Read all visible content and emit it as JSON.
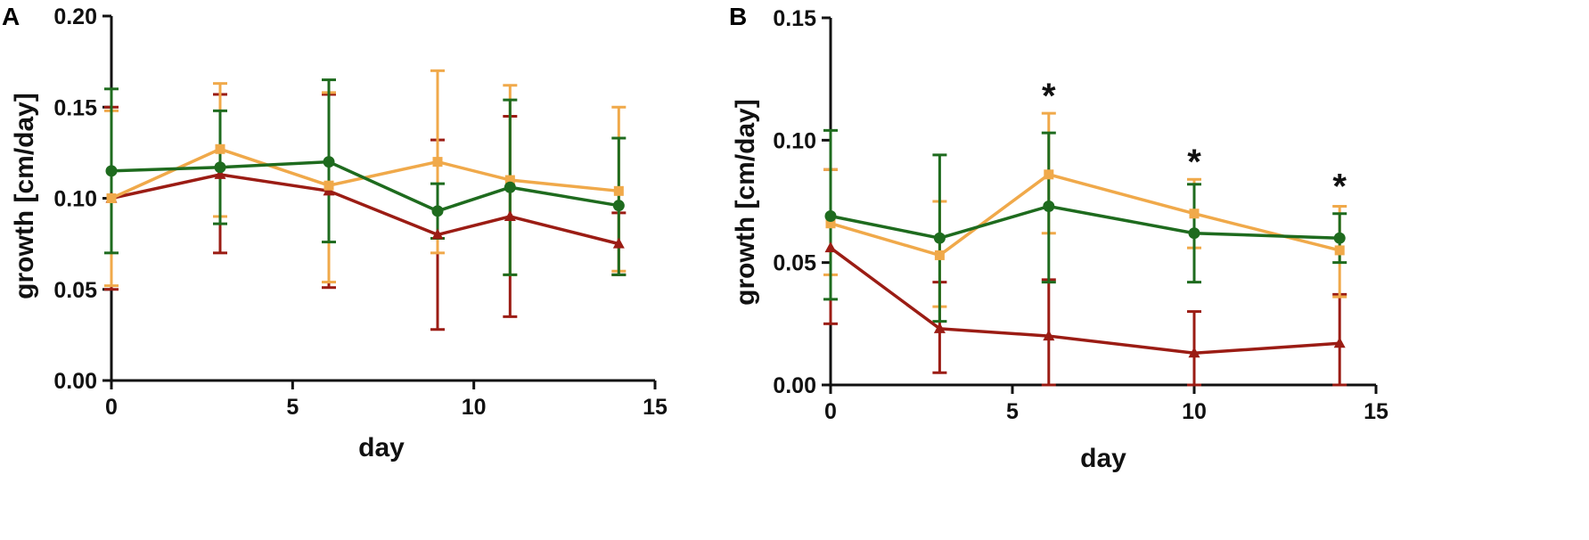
{
  "chart_data": [
    {
      "type": "line",
      "panel_label": "A",
      "xlabel": "day",
      "ylabel": "growth [cm/day]",
      "xlim": [
        0,
        15
      ],
      "ylim": [
        0,
        0.2
      ],
      "xticks": [
        0,
        5,
        10,
        15
      ],
      "xtick_labels": [
        "0",
        "5",
        "10",
        "15"
      ],
      "yticks": [
        0,
        0.05,
        0.1,
        0.15,
        0.2
      ],
      "ytick_labels": [
        "0.00",
        "0.05",
        "0.10",
        "0.15",
        "0.20"
      ],
      "grid": false,
      "annotations": [],
      "series": [
        {
          "name": "red",
          "color": "#9b1c14",
          "marker": "triangle",
          "x": [
            0,
            3,
            6,
            9,
            11,
            14
          ],
          "y": [
            0.1,
            0.113,
            0.104,
            0.08,
            0.09,
            0.075
          ],
          "err_low": [
            0.05,
            0.07,
            0.051,
            0.028,
            0.035,
            0.058
          ],
          "err_high": [
            0.15,
            0.157,
            0.157,
            0.132,
            0.145,
            0.092
          ]
        },
        {
          "name": "orange",
          "color": "#f0a94a",
          "marker": "square",
          "x": [
            0,
            3,
            6,
            9,
            11,
            14
          ],
          "y": [
            0.1,
            0.127,
            0.107,
            0.12,
            0.11,
            0.104
          ],
          "err_low": [
            0.052,
            0.09,
            0.054,
            0.07,
            0.058,
            0.06
          ],
          "err_high": [
            0.148,
            0.163,
            0.158,
            0.17,
            0.162,
            0.15
          ]
        },
        {
          "name": "green",
          "color": "#1e6b1e",
          "marker": "circle",
          "x": [
            0,
            3,
            6,
            9,
            11,
            14
          ],
          "y": [
            0.115,
            0.117,
            0.12,
            0.093,
            0.106,
            0.096
          ],
          "err_low": [
            0.07,
            0.086,
            0.076,
            0.078,
            0.058,
            0.058
          ],
          "err_high": [
            0.16,
            0.148,
            0.165,
            0.108,
            0.154,
            0.133
          ]
        }
      ]
    },
    {
      "type": "line",
      "panel_label": "B",
      "xlabel": "day",
      "ylabel": "growth [cm/day]",
      "xlim": [
        0,
        15
      ],
      "ylim": [
        0,
        0.15
      ],
      "xticks": [
        0,
        5,
        10,
        15
      ],
      "xtick_labels": [
        "0",
        "5",
        "10",
        "15"
      ],
      "yticks": [
        0,
        0.05,
        0.1,
        0.15
      ],
      "ytick_labels": [
        "0.00",
        "0.05",
        "0.10",
        "0.15"
      ],
      "grid": false,
      "annotations": [
        {
          "text": "*",
          "x": 6,
          "y": 0.122
        },
        {
          "text": "*",
          "x": 10,
          "y": 0.095
        },
        {
          "text": "*",
          "x": 14,
          "y": 0.085
        }
      ],
      "series": [
        {
          "name": "red",
          "color": "#9b1c14",
          "marker": "triangle",
          "x": [
            0,
            3,
            6,
            10,
            14
          ],
          "y": [
            0.056,
            0.023,
            0.02,
            0.013,
            0.017
          ],
          "err_low": [
            0.025,
            0.005,
            0.0,
            0.0,
            0.0
          ],
          "err_high": [
            0.088,
            0.042,
            0.043,
            0.03,
            0.037
          ]
        },
        {
          "name": "orange",
          "color": "#f0a94a",
          "marker": "square",
          "x": [
            0,
            3,
            6,
            10,
            14
          ],
          "y": [
            0.066,
            0.053,
            0.086,
            0.07,
            0.055
          ],
          "err_low": [
            0.045,
            0.032,
            0.062,
            0.056,
            0.036
          ],
          "err_high": [
            0.088,
            0.075,
            0.111,
            0.084,
            0.073
          ]
        },
        {
          "name": "green",
          "color": "#1e6b1e",
          "marker": "circle",
          "x": [
            0,
            3,
            6,
            10,
            14
          ],
          "y": [
            0.069,
            0.06,
            0.073,
            0.062,
            0.06
          ],
          "err_low": [
            0.035,
            0.026,
            0.042,
            0.042,
            0.05
          ],
          "err_high": [
            0.104,
            0.094,
            0.103,
            0.082,
            0.07
          ]
        }
      ]
    }
  ]
}
